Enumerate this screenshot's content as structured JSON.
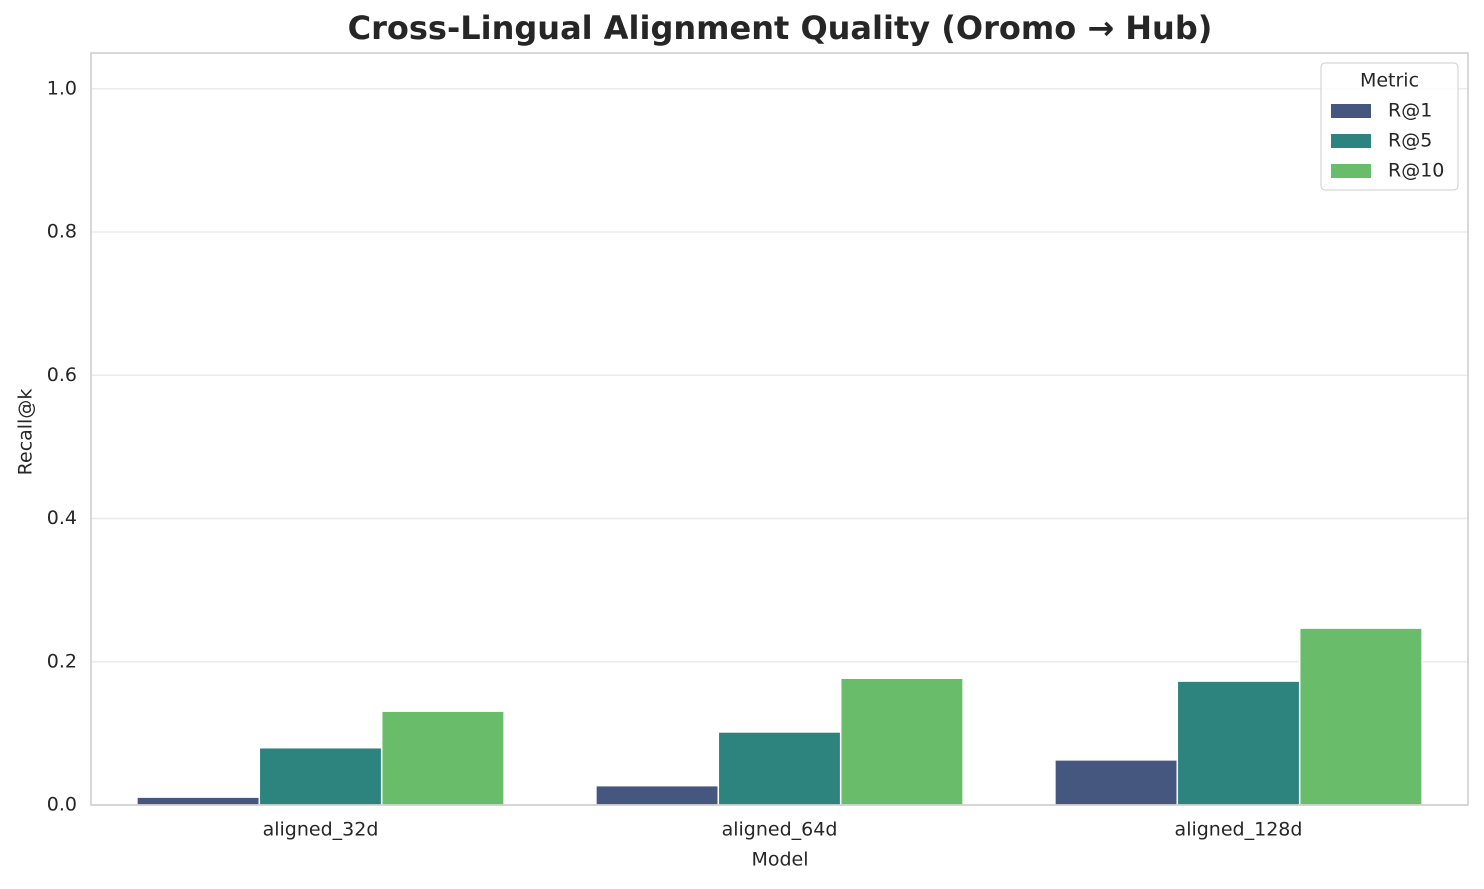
{
  "chart_data": {
    "type": "bar",
    "title": "Cross-Lingual Alignment Quality (Oromo → Hub)",
    "x_label": "Model",
    "y_label": "Recall@k",
    "legend_title": "Metric",
    "categories": [
      "aligned_32d",
      "aligned_64d",
      "aligned_128d"
    ],
    "series": [
      {
        "name": "R@1",
        "color": "#45567f",
        "values": [
          0.011,
          0.027,
          0.063
        ]
      },
      {
        "name": "R@5",
        "color": "#2d837d",
        "values": [
          0.08,
          0.102,
          0.173
        ]
      },
      {
        "name": "R@10",
        "color": "#69bd6a",
        "values": [
          0.131,
          0.177,
          0.247
        ]
      }
    ],
    "ylim": [
      0,
      1.05
    ],
    "yticks": [
      {
        "value": 0,
        "label": "0.0"
      },
      0.2,
      0.4,
      0.6,
      0.8,
      {
        "value": 1,
        "label": "1.0"
      }
    ],
    "grid": true,
    "legend": "upper right"
  }
}
